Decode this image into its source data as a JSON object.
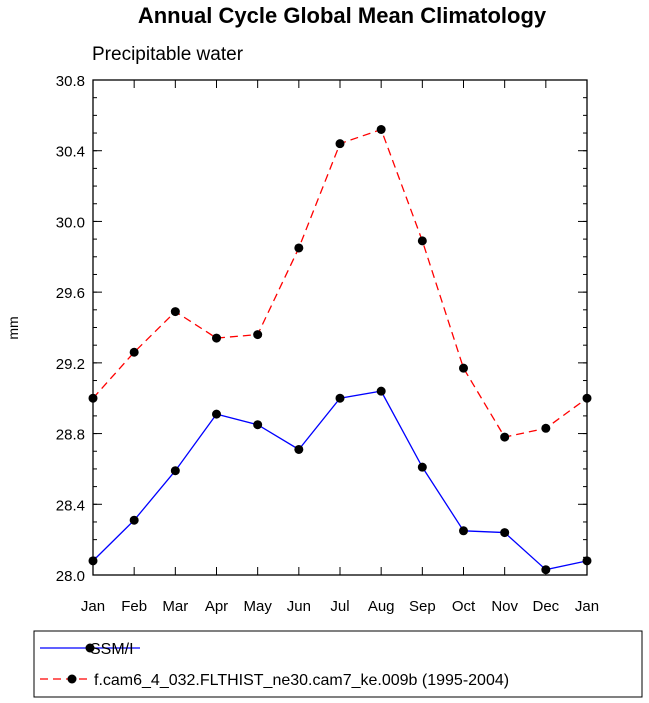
{
  "chart_data": {
    "type": "line",
    "title": "Annual Cycle Global Mean Climatology",
    "subtitle": "Precipitable water",
    "xlabel": "",
    "ylabel": "mm",
    "categories": [
      "Jan",
      "Feb",
      "Mar",
      "Apr",
      "May",
      "Jun",
      "Jul",
      "Aug",
      "Sep",
      "Oct",
      "Nov",
      "Dec",
      "Jan"
    ],
    "ylim": [
      28.0,
      30.8
    ],
    "yticks": [
      "28.0",
      "28.4",
      "28.8",
      "29.2",
      "29.6",
      "30.0",
      "30.4",
      "30.8"
    ],
    "grid": false,
    "legend_position": "bottom",
    "series": [
      {
        "name": "SSM/I",
        "color": "#0000ff",
        "line_style": "solid",
        "values": [
          28.08,
          28.31,
          28.59,
          28.91,
          28.85,
          28.71,
          29.0,
          29.04,
          28.61,
          28.25,
          28.24,
          28.03,
          28.08
        ]
      },
      {
        "name": "f.cam6_4_032.FLTHIST_ne30.cam7_ke.009b (1995-2004)",
        "color": "#ff0000",
        "line_style": "dashed",
        "values": [
          29.0,
          29.26,
          29.49,
          29.34,
          29.36,
          29.85,
          30.44,
          30.52,
          29.89,
          29.17,
          28.78,
          28.83,
          29.0
        ]
      }
    ]
  }
}
